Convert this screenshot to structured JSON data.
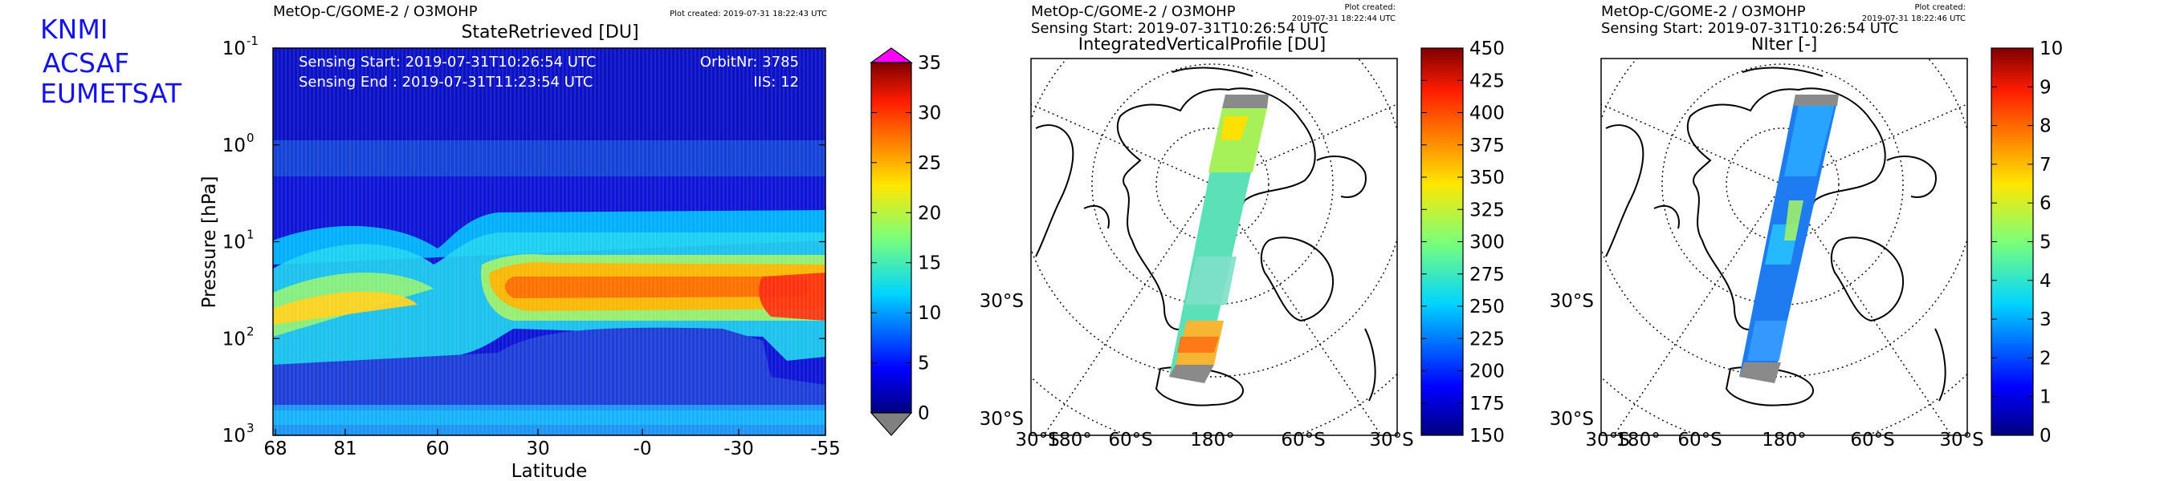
{
  "org_labels": [
    "KNMI",
    "ACSAF",
    "EUMETSAT"
  ],
  "chart_data": [
    {
      "type": "heatmap",
      "product": "MetOp-C/GOME-2 / O3MOHP",
      "plot_created": "Plot created: 2019-07-31 18:22:43 UTC",
      "title": "StateRetrieved [DU]",
      "xlabel": "Latitude",
      "ylabel": "Pressure [hPa]",
      "x_ticks": [
        "68",
        "81",
        "60",
        "30",
        "-0",
        "-30",
        "-55"
      ],
      "y_scale": "log",
      "y_ticks": [
        "10",
        "10",
        "10",
        "10",
        "10"
      ],
      "y_tick_exponents": [
        "-1",
        "0",
        "1",
        "2",
        "3"
      ],
      "ylim": [
        1000,
        0.1
      ],
      "info": {
        "sensing_start": "Sensing Start: 2019-07-31T10:26:54 UTC",
        "sensing_end": "Sensing End  : 2019-07-31T11:23:54 UTC",
        "orbit": "OrbitNr: 3785",
        "iis": "IIS: 12"
      },
      "colorbar": {
        "min": 0,
        "max": 35,
        "ticks": [
          "0",
          "5",
          "10",
          "15",
          "20",
          "25",
          "30",
          "35"
        ],
        "over_color": "#ff00ff",
        "under_color": "#808080"
      }
    },
    {
      "type": "map",
      "product": "MetOp-C/GOME-2 / O3MOHP",
      "plot_created": "Plot created:",
      "plot_created_time": "2019-07-31 18:22:44 UTC",
      "sensing_start": "Sensing Start: 2019-07-31T10:26:54 UTC",
      "title": "IntegratedVerticalProfile [DU]",
      "lat_labels": [
        "30°S",
        "30°S"
      ],
      "lon_labels": [
        "30°S",
        "180°",
        "60°S",
        "180°",
        "60°S",
        "30°S"
      ],
      "colorbar": {
        "min": 150,
        "max": 450,
        "ticks": [
          "150",
          "175",
          "200",
          "225",
          "250",
          "275",
          "300",
          "325",
          "350",
          "375",
          "400",
          "425",
          "450"
        ]
      }
    },
    {
      "type": "map",
      "product": "MetOp-C/GOME-2 / O3MOHP",
      "plot_created": "Plot created:",
      "plot_created_time": "2019-07-31 18:22:46 UTC",
      "sensing_start": "Sensing Start: 2019-07-31T10:26:54 UTC",
      "title": "NIter [-]",
      "lat_labels": [
        "30°S",
        "30°S"
      ],
      "lon_labels": [
        "30°S",
        "180°",
        "60°S",
        "180°",
        "60°S",
        "30°S"
      ],
      "colorbar": {
        "min": 0,
        "max": 10,
        "ticks": [
          "0",
          "1",
          "2",
          "3",
          "4",
          "5",
          "6",
          "7",
          "8",
          "9",
          "10"
        ]
      }
    }
  ]
}
